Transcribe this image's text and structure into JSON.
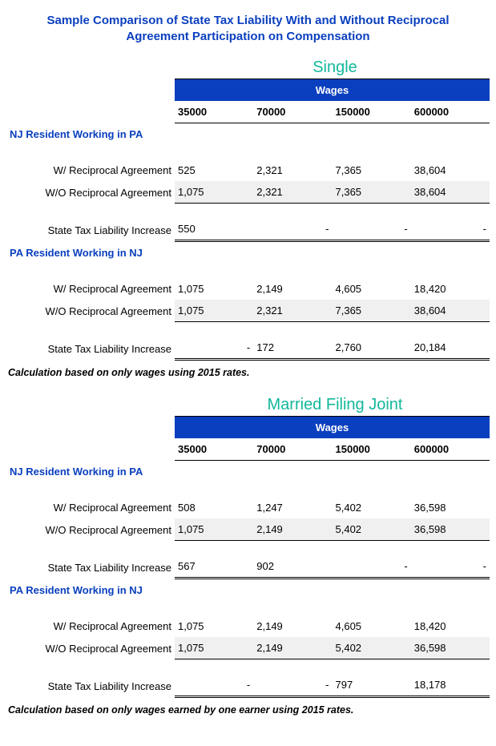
{
  "title": "Sample Comparison of State Tax Liability With and Without Reciprocal Agreement Participation on Compensation",
  "wage_header": "Wages",
  "wage_levels": [
    "35000",
    "70000",
    "150000",
    "600000"
  ],
  "row_labels": {
    "with": "W/ Reciprocal Agreement",
    "without": "W/O Reciprocal Agreement",
    "increase": "State Tax Liability Increase"
  },
  "sections": {
    "nj_in_pa": "NJ Resident Working in PA",
    "pa_in_nj": "PA Resident Working in NJ"
  },
  "tables": [
    {
      "filing_status": "Single",
      "footnote": "Calculation based on only wages using 2015 rates.",
      "groups": [
        {
          "key": "nj_in_pa",
          "with": [
            "525",
            "2,321",
            "7,365",
            "38,604"
          ],
          "without": [
            "1,075",
            "2,321",
            "7,365",
            "38,604"
          ],
          "increase": [
            "550",
            "-",
            "-",
            "-"
          ]
        },
        {
          "key": "pa_in_nj",
          "with": [
            "1,075",
            "2,149",
            "4,605",
            "18,420"
          ],
          "without": [
            "1,075",
            "2,321",
            "7,365",
            "38,604"
          ],
          "increase": [
            "-",
            "172",
            "2,760",
            "20,184"
          ]
        }
      ]
    },
    {
      "filing_status": "Married Filing Joint",
      "footnote": "Calculation based on only wages earned by one earner using 2015 rates.",
      "groups": [
        {
          "key": "nj_in_pa",
          "with": [
            "508",
            "1,247",
            "5,402",
            "36,598"
          ],
          "without": [
            "1,075",
            "2,149",
            "5,402",
            "36,598"
          ],
          "increase": [
            "567",
            "902",
            "-",
            "-"
          ]
        },
        {
          "key": "pa_in_nj",
          "with": [
            "1,075",
            "2,149",
            "4,605",
            "18,420"
          ],
          "without": [
            "1,075",
            "2,149",
            "5,402",
            "36,598"
          ],
          "increase": [
            "-",
            "-",
            "797",
            "18,178"
          ]
        }
      ]
    }
  ],
  "colors": {
    "brand_blue": "#0a3fbf",
    "teal": "#13b89b",
    "shade": "#f0f0f0"
  }
}
